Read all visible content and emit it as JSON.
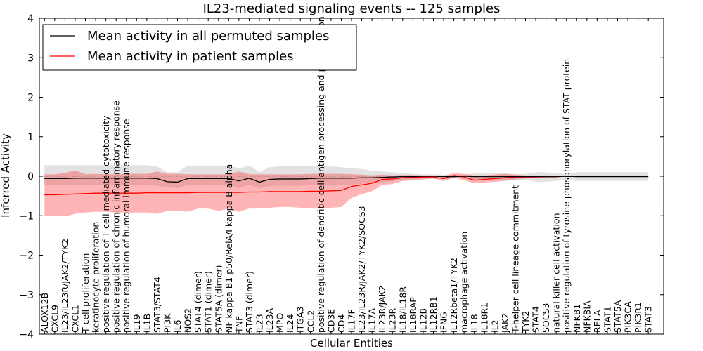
{
  "chart_data": {
    "type": "line",
    "title": "IL23-mediated signaling events -- 125 samples",
    "xlabel": "Cellular Entities",
    "ylabel": "Inferred Activity",
    "ylim": [
      -4,
      4
    ],
    "yticks": [
      -4,
      -3,
      -2,
      -1,
      0,
      1,
      2,
      3,
      4
    ],
    "grid": false,
    "legend_position": "top-left",
    "categories": [
      "ALOX12B",
      "CXCL9",
      "IL23/IL23R/JAK2/TYK2",
      "CXCL1",
      "T cell proliferation",
      "keratinocyte proliferation",
      "positive regulation of T cell mediated cytotoxicity",
      "positive regulation of chronic inflammatory response",
      "positive regulation of humoral immune response",
      "IL19",
      "IL1B",
      "STAT3/STAT4",
      "PI3K",
      "IL6",
      "NOS2",
      "STAT4 (dimer)",
      "STAT1 (dimer)",
      "STAT5A (dimer)",
      "NF kappa B1 p50/RelA/I kappa B alpha",
      "TNF",
      "STAT3 (dimer)",
      "IL23",
      "IL23A",
      "MPO",
      "IL24",
      "ITGA3",
      "CCL2",
      "positive regulation of dendritic cell antigen processing and presentation",
      "CD3E",
      "CD4",
      "IL17F",
      "IL23/IL23R/JAK2/TYK2/SOCS3",
      "IL17A",
      "IL23R/JAK2",
      "IL23R",
      "IL18/IL18R",
      "IL18RAP",
      "IL12B",
      "IL12RB1",
      "IFNG",
      "IL12Rbeta1/TYK2",
      "macrophage activation",
      "IL18",
      "IL18R1",
      "IL2",
      "JAK2",
      "T-helper cell lineage commitment",
      "TYK2",
      "STAT4",
      "SOCS3",
      "natural killer cell activation",
      "positive regulation of tyrosine phosphorylation of STAT protein",
      "NFKB1",
      "NFKBIA",
      "RELA",
      "STAT1",
      "STAT5A",
      "PIK3CA",
      "PIK3R1",
      "STAT3"
    ],
    "series": [
      {
        "name": "Mean activity in all permuted samples",
        "color": "#000000",
        "values": [
          -0.06,
          -0.06,
          -0.06,
          -0.05,
          -0.05,
          -0.05,
          -0.05,
          -0.05,
          -0.05,
          -0.05,
          -0.05,
          -0.06,
          -0.14,
          -0.15,
          -0.06,
          -0.06,
          -0.06,
          -0.06,
          -0.06,
          -0.12,
          -0.05,
          -0.15,
          -0.08,
          -0.07,
          -0.07,
          -0.07,
          -0.06,
          -0.05,
          -0.05,
          -0.05,
          -0.05,
          -0.04,
          -0.04,
          -0.03,
          -0.02,
          -0.01,
          -0.01,
          0.0,
          0.0,
          -0.01,
          -0.01,
          0.0,
          -0.01,
          -0.01,
          -0.01,
          -0.01,
          -0.01,
          -0.01,
          -0.01,
          -0.01,
          -0.01,
          0.0,
          -0.01,
          -0.01,
          -0.01,
          -0.01,
          -0.01,
          -0.01,
          -0.01,
          -0.01
        ],
        "lower": [
          -0.22,
          -0.22,
          -0.22,
          -0.22,
          -0.22,
          -0.22,
          -0.22,
          -0.22,
          -0.22,
          -0.22,
          -0.22,
          -0.24,
          -0.28,
          -0.3,
          -0.22,
          -0.22,
          -0.22,
          -0.22,
          -0.22,
          -0.3,
          -0.22,
          -0.3,
          -0.25,
          -0.24,
          -0.24,
          -0.24,
          -0.23,
          -0.22,
          -0.22,
          -0.22,
          -0.21,
          -0.19,
          -0.17,
          -0.15,
          -0.12,
          -0.1,
          -0.08,
          -0.06,
          -0.05,
          -0.06,
          -0.06,
          -0.05,
          -0.1,
          -0.1,
          -0.09,
          -0.09,
          -0.09,
          -0.09,
          -0.14,
          -0.14,
          -0.12,
          -0.08,
          -0.12,
          -0.12,
          -0.12,
          -0.12,
          -0.12,
          -0.12,
          -0.12,
          -0.12
        ],
        "upper": [
          0.28,
          0.28,
          0.28,
          0.28,
          0.28,
          0.28,
          0.28,
          0.28,
          0.28,
          0.28,
          0.28,
          0.25,
          0.1,
          0.1,
          0.27,
          0.27,
          0.27,
          0.27,
          0.27,
          0.2,
          0.27,
          0.1,
          0.23,
          0.25,
          0.25,
          0.25,
          0.26,
          0.26,
          0.25,
          0.23,
          0.2,
          0.18,
          0.14,
          0.12,
          0.1,
          0.08,
          0.06,
          0.05,
          0.05,
          0.04,
          0.04,
          0.04,
          0.08,
          0.08,
          0.07,
          0.07,
          0.06,
          0.06,
          0.1,
          0.1,
          0.08,
          0.05,
          0.1,
          0.1,
          0.1,
          0.1,
          0.1,
          0.1,
          0.1,
          0.1
        ]
      },
      {
        "name": "Mean activity in patient samples",
        "color": "#ff0000",
        "values": [
          -0.47,
          -0.47,
          -0.46,
          -0.45,
          -0.44,
          -0.43,
          -0.43,
          -0.43,
          -0.43,
          -0.43,
          -0.42,
          -0.42,
          -0.42,
          -0.42,
          -0.42,
          -0.41,
          -0.41,
          -0.41,
          -0.41,
          -0.41,
          -0.4,
          -0.4,
          -0.39,
          -0.39,
          -0.39,
          -0.39,
          -0.38,
          -0.38,
          -0.37,
          -0.36,
          -0.26,
          -0.22,
          -0.18,
          -0.08,
          -0.07,
          -0.04,
          -0.03,
          -0.02,
          -0.02,
          -0.06,
          0.02,
          -0.02,
          -0.1,
          -0.08,
          -0.06,
          -0.04,
          -0.02,
          -0.02,
          -0.02,
          -0.01,
          -0.01,
          0.0,
          0.0,
          0.0,
          0.0,
          0.0,
          0.0,
          0.0,
          0.0,
          0.0
        ],
        "lower": [
          -1.0,
          -1.0,
          -1.02,
          -0.95,
          -0.92,
          -0.9,
          -0.9,
          -0.92,
          -0.92,
          -0.92,
          -0.92,
          -0.95,
          -0.88,
          -0.88,
          -0.9,
          -0.82,
          -0.82,
          -0.88,
          -0.82,
          -0.9,
          -0.82,
          -0.82,
          -0.8,
          -0.78,
          -0.78,
          -0.8,
          -0.82,
          -0.82,
          -0.8,
          -0.78,
          -0.55,
          -0.45,
          -0.38,
          -0.22,
          -0.2,
          -0.12,
          -0.1,
          -0.08,
          -0.06,
          -0.12,
          -0.04,
          -0.1,
          -0.18,
          -0.16,
          -0.14,
          -0.12,
          -0.08,
          -0.06,
          -0.05,
          -0.04,
          -0.03,
          0.0,
          -0.02,
          -0.02,
          -0.02,
          -0.02,
          -0.02,
          -0.02,
          -0.02,
          -0.02
        ],
        "upper": [
          0.05,
          0.05,
          0.08,
          0.15,
          0.05,
          0.06,
          0.05,
          0.05,
          0.06,
          0.06,
          0.06,
          0.12,
          0.06,
          0.06,
          0.05,
          0.05,
          0.05,
          0.05,
          0.05,
          0.12,
          0.05,
          0.05,
          0.05,
          0.05,
          0.05,
          0.05,
          0.06,
          0.06,
          0.06,
          0.06,
          0.05,
          0.04,
          0.02,
          0.04,
          0.02,
          0.03,
          0.03,
          0.02,
          0.02,
          0.0,
          0.08,
          0.06,
          0.02,
          0.02,
          0.04,
          0.06,
          0.04,
          0.02,
          0.02,
          0.02,
          0.01,
          0.0,
          0.02,
          0.02,
          0.02,
          0.02,
          0.02,
          0.02,
          0.02,
          0.02
        ]
      }
    ]
  }
}
